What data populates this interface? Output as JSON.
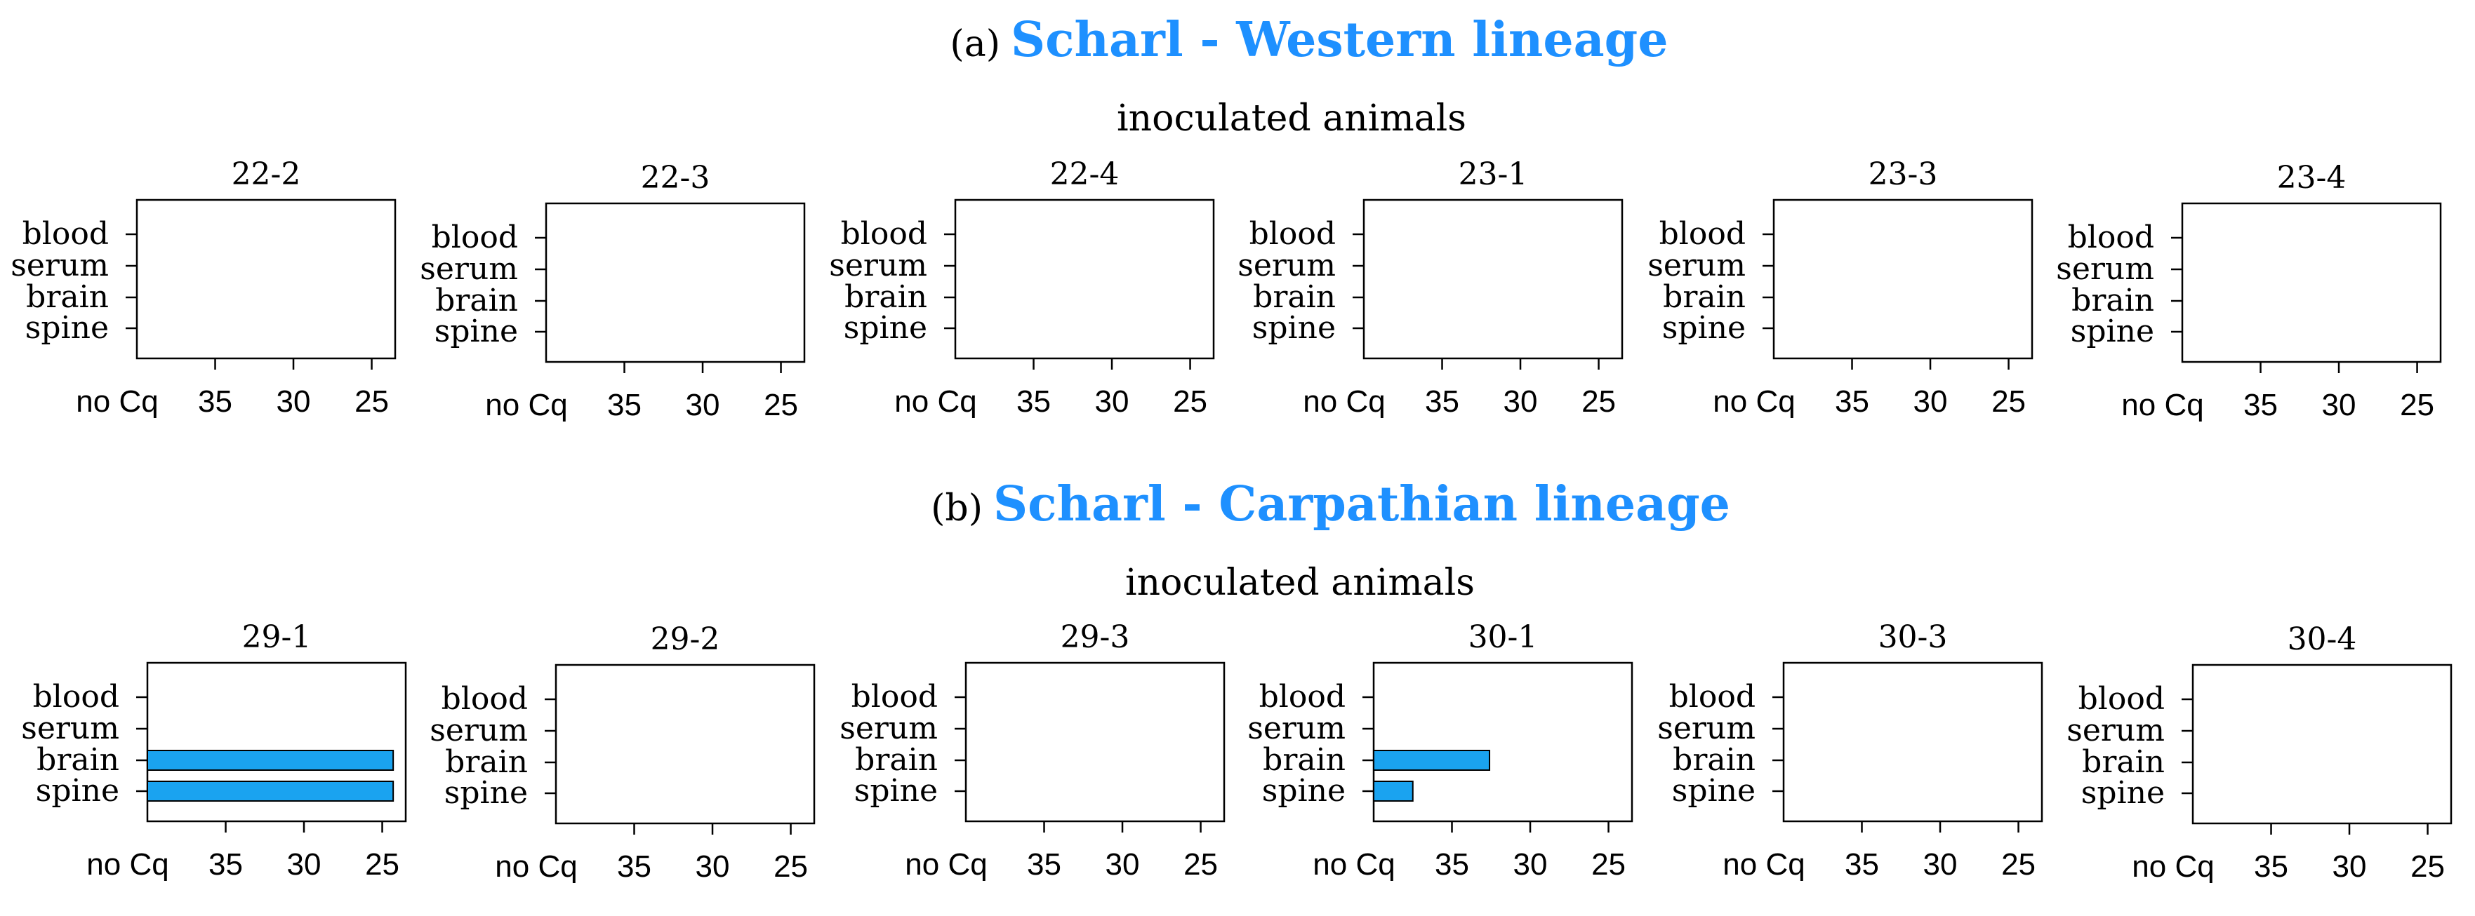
{
  "accent_color": "#1e90ff",
  "bar_color": "#1aa3f0",
  "sections": [
    {
      "label": "(a)",
      "title": "Scharl - Western lineage",
      "subtitle": "inoculated animals"
    },
    {
      "label": "(b)",
      "title": "Scharl - Carpathian lineage",
      "subtitle": "inoculated animals"
    }
  ],
  "chart_data": [
    {
      "type": "bar",
      "orientation": "horizontal",
      "title": "22-2",
      "categories": [
        "blood",
        "serum",
        "brain",
        "spine"
      ],
      "values": [
        null,
        null,
        null,
        null
      ],
      "x_tick_labels": [
        "no Cq",
        "35",
        "30",
        "25"
      ],
      "x_ticks": [
        40,
        35,
        30,
        25
      ],
      "xlim": [
        40,
        23.5
      ],
      "bar_start": 40
    },
    {
      "type": "bar",
      "orientation": "horizontal",
      "title": "22-3",
      "categories": [
        "blood",
        "serum",
        "brain",
        "spine"
      ],
      "values": [
        null,
        null,
        null,
        null
      ],
      "x_tick_labels": [
        "no Cq",
        "35",
        "30",
        "25"
      ],
      "x_ticks": [
        40,
        35,
        30,
        25
      ],
      "xlim": [
        40,
        23.5
      ],
      "bar_start": 40
    },
    {
      "type": "bar",
      "orientation": "horizontal",
      "title": "22-4",
      "categories": [
        "blood",
        "serum",
        "brain",
        "spine"
      ],
      "values": [
        null,
        null,
        null,
        null
      ],
      "x_tick_labels": [
        "no Cq",
        "35",
        "30",
        "25"
      ],
      "x_ticks": [
        40,
        35,
        30,
        25
      ],
      "xlim": [
        40,
        23.5
      ],
      "bar_start": 40
    },
    {
      "type": "bar",
      "orientation": "horizontal",
      "title": "23-1",
      "categories": [
        "blood",
        "serum",
        "brain",
        "spine"
      ],
      "values": [
        null,
        null,
        null,
        null
      ],
      "x_tick_labels": [
        "no Cq",
        "35",
        "30",
        "25"
      ],
      "x_ticks": [
        40,
        35,
        30,
        25
      ],
      "xlim": [
        40,
        23.5
      ],
      "bar_start": 40
    },
    {
      "type": "bar",
      "orientation": "horizontal",
      "title": "23-3",
      "categories": [
        "blood",
        "serum",
        "brain",
        "spine"
      ],
      "values": [
        null,
        null,
        null,
        null
      ],
      "x_tick_labels": [
        "no Cq",
        "35",
        "30",
        "25"
      ],
      "x_ticks": [
        40,
        35,
        30,
        25
      ],
      "xlim": [
        40,
        23.5
      ],
      "bar_start": 40
    },
    {
      "type": "bar",
      "orientation": "horizontal",
      "title": "23-4",
      "categories": [
        "blood",
        "serum",
        "brain",
        "spine"
      ],
      "values": [
        null,
        null,
        null,
        null
      ],
      "x_tick_labels": [
        "no Cq",
        "35",
        "30",
        "25"
      ],
      "x_ticks": [
        40,
        35,
        30,
        25
      ],
      "xlim": [
        40,
        23.5
      ],
      "bar_start": 40
    },
    {
      "type": "bar",
      "orientation": "horizontal",
      "title": "29-1",
      "categories": [
        "blood",
        "serum",
        "brain",
        "spine"
      ],
      "values": [
        null,
        null,
        24.3,
        24.3
      ],
      "x_tick_labels": [
        "no Cq",
        "35",
        "30",
        "25"
      ],
      "x_ticks": [
        40,
        35,
        30,
        25
      ],
      "xlim": [
        40,
        23.5
      ],
      "bar_start": 40
    },
    {
      "type": "bar",
      "orientation": "horizontal",
      "title": "29-2",
      "categories": [
        "blood",
        "serum",
        "brain",
        "spine"
      ],
      "values": [
        null,
        null,
        null,
        null
      ],
      "x_tick_labels": [
        "no Cq",
        "35",
        "30",
        "25"
      ],
      "x_ticks": [
        40,
        35,
        30,
        25
      ],
      "xlim": [
        40,
        23.5
      ],
      "bar_start": 40
    },
    {
      "type": "bar",
      "orientation": "horizontal",
      "title": "29-3",
      "categories": [
        "blood",
        "serum",
        "brain",
        "spine"
      ],
      "values": [
        null,
        null,
        null,
        null
      ],
      "x_tick_labels": [
        "no Cq",
        "35",
        "30",
        "25"
      ],
      "x_ticks": [
        40,
        35,
        30,
        25
      ],
      "xlim": [
        40,
        23.5
      ],
      "bar_start": 40
    },
    {
      "type": "bar",
      "orientation": "horizontal",
      "title": "30-1",
      "categories": [
        "blood",
        "serum",
        "brain",
        "spine"
      ],
      "values": [
        null,
        null,
        32.6,
        37.5
      ],
      "x_tick_labels": [
        "no Cq",
        "35",
        "30",
        "25"
      ],
      "x_ticks": [
        40,
        35,
        30,
        25
      ],
      "xlim": [
        40,
        23.5
      ],
      "bar_start": 40
    },
    {
      "type": "bar",
      "orientation": "horizontal",
      "title": "30-3",
      "categories": [
        "blood",
        "serum",
        "brain",
        "spine"
      ],
      "values": [
        null,
        null,
        null,
        null
      ],
      "x_tick_labels": [
        "no Cq",
        "35",
        "30",
        "25"
      ],
      "x_ticks": [
        40,
        35,
        30,
        25
      ],
      "xlim": [
        40,
        23.5
      ],
      "bar_start": 40
    },
    {
      "type": "bar",
      "orientation": "horizontal",
      "title": "30-4",
      "categories": [
        "blood",
        "serum",
        "brain",
        "spine"
      ],
      "values": [
        null,
        null,
        null,
        null
      ],
      "x_tick_labels": [
        "no Cq",
        "35",
        "30",
        "25"
      ],
      "x_ticks": [
        40,
        35,
        30,
        25
      ],
      "xlim": [
        40,
        23.5
      ],
      "bar_start": 40
    }
  ]
}
